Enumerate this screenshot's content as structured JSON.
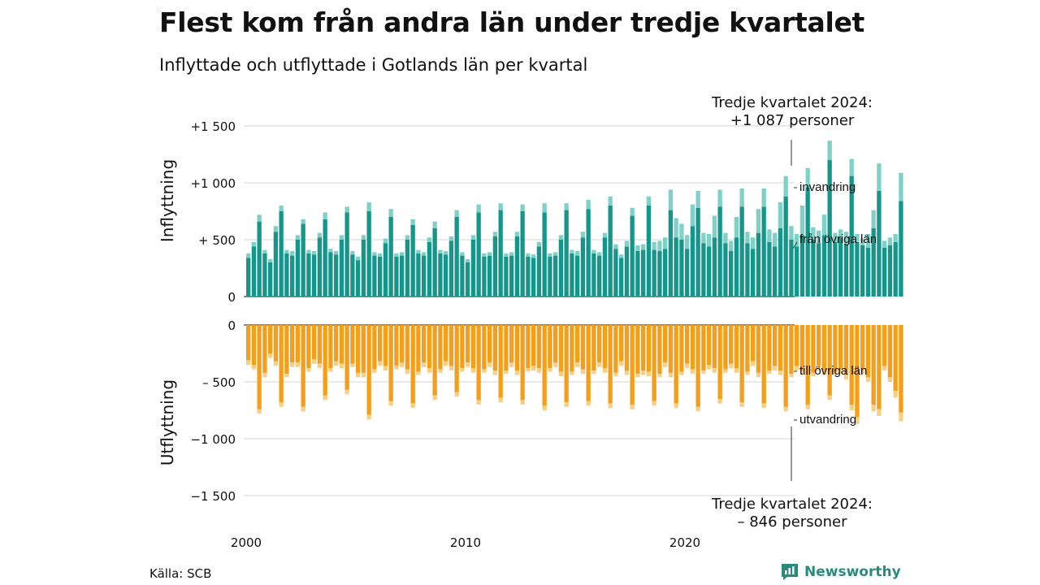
{
  "title": "Flest kom från andra län under tredje kvartalet",
  "subtitle": "Inflyttade och utflyttade i Gotlands län per kvartal",
  "source": "Källa: SCB",
  "brand": "Newsworthy",
  "colors": {
    "in_domestic": "#15968a",
    "in_immigration": "#7fd0c6",
    "out_domestic": "#f59e1a",
    "out_emigration": "#f8cf84",
    "grid": "#dddddd"
  },
  "chart_data": {
    "type": "bar",
    "xlabel": "",
    "x_ticks": [
      "2000",
      "2010",
      "2020"
    ],
    "x_start": 2000,
    "period": "quarter",
    "top_panel": {
      "ylabel": "Inflyttning",
      "ylim": [
        0,
        1600
      ],
      "y_ticks": [
        {
          "value": 1500,
          "label": "+1 500"
        },
        {
          "value": 1000,
          "label": "+1 000"
        },
        {
          "value": 500,
          "label": "+   500"
        },
        {
          "value": 0,
          "label": "0"
        }
      ],
      "series": [
        {
          "name": "från övriga län",
          "color": "#15968a",
          "values": [
            340,
            440,
            660,
            380,
            300,
            570,
            750,
            380,
            360,
            500,
            640,
            380,
            370,
            520,
            680,
            390,
            370,
            500,
            740,
            370,
            320,
            500,
            750,
            360,
            350,
            470,
            700,
            350,
            360,
            500,
            630,
            380,
            360,
            480,
            600,
            380,
            370,
            490,
            700,
            360,
            300,
            500,
            740,
            350,
            360,
            530,
            760,
            350,
            360,
            530,
            750,
            350,
            340,
            440,
            740,
            350,
            360,
            500,
            760,
            380,
            360,
            520,
            770,
            380,
            360,
            520,
            800,
            420,
            340,
            440,
            710,
            400,
            410,
            800,
            410,
            400,
            420,
            760,
            520,
            500,
            420,
            620,
            780,
            470,
            440,
            520,
            790,
            470,
            400,
            520,
            790,
            470,
            420,
            560,
            790,
            480,
            440,
            600,
            880,
            500,
            440,
            540,
            960,
            500,
            470,
            540,
            1200,
            480,
            520,
            460,
            1060,
            480,
            450,
            430,
            600,
            930,
            430,
            450,
            480,
            840
          ]
        },
        {
          "name": "invandring",
          "color": "#7fd0c6",
          "values": [
            40,
            40,
            60,
            30,
            30,
            50,
            50,
            30,
            40,
            40,
            40,
            30,
            30,
            40,
            60,
            30,
            30,
            40,
            50,
            30,
            30,
            40,
            80,
            30,
            30,
            40,
            70,
            30,
            30,
            40,
            50,
            30,
            30,
            40,
            60,
            30,
            30,
            40,
            60,
            30,
            30,
            40,
            70,
            30,
            30,
            40,
            60,
            30,
            30,
            40,
            60,
            30,
            30,
            40,
            80,
            30,
            30,
            40,
            60,
            30,
            40,
            50,
            80,
            30,
            30,
            40,
            80,
            40,
            30,
            50,
            70,
            50,
            50,
            80,
            70,
            90,
            100,
            180,
            170,
            140,
            120,
            190,
            150,
            90,
            110,
            190,
            150,
            90,
            90,
            180,
            160,
            100,
            100,
            210,
            160,
            110,
            120,
            230,
            180,
            120,
            110,
            260,
            170,
            110,
            110,
            180,
            170,
            80,
            70,
            110,
            150,
            70,
            60,
            120,
            160,
            240,
            60,
            70,
            70,
            247
          ]
        }
      ]
    },
    "bottom_panel": {
      "ylabel": "Utflyttning",
      "ylim": [
        -1600,
        0
      ],
      "y_ticks": [
        {
          "value": 0,
          "label": "0"
        },
        {
          "value": -500,
          "label": "–   500"
        },
        {
          "value": -1000,
          "label": "−1 000"
        },
        {
          "value": -1500,
          "label": "−1 500"
        }
      ],
      "series": [
        {
          "name": "till övriga län",
          "color": "#f59e1a",
          "values": [
            -310,
            -350,
            -740,
            -420,
            -250,
            -320,
            -680,
            -430,
            -330,
            -330,
            -720,
            -380,
            -300,
            -340,
            -620,
            -380,
            -320,
            -340,
            -570,
            -340,
            -420,
            -420,
            -790,
            -390,
            -320,
            -360,
            -670,
            -360,
            -330,
            -390,
            -690,
            -410,
            -330,
            -380,
            -620,
            -390,
            -320,
            -360,
            -590,
            -380,
            -330,
            -380,
            -660,
            -390,
            -330,
            -400,
            -640,
            -400,
            -330,
            -400,
            -660,
            -380,
            -360,
            -380,
            -710,
            -380,
            -330,
            -410,
            -680,
            -410,
            -330,
            -390,
            -670,
            -400,
            -330,
            -380,
            -690,
            -420,
            -320,
            -400,
            -700,
            -430,
            -400,
            -410,
            -670,
            -430,
            -330,
            -420,
            -690,
            -410,
            -340,
            -390,
            -720,
            -400,
            -350,
            -380,
            -650,
            -390,
            -340,
            -380,
            -680,
            -410,
            -320,
            -420,
            -690,
            -400,
            -360,
            -400,
            -720,
            -430,
            -360,
            -400,
            -700,
            -420,
            -360,
            -400,
            -620,
            -410,
            -390,
            -440,
            -700,
            -810,
            -390,
            -460,
            -700,
            -740,
            -360,
            -460,
            -580,
            -770
          ]
        },
        {
          "name": "utvandring",
          "color": "#f8cf84",
          "values": [
            -40,
            -40,
            -40,
            -40,
            -40,
            -40,
            -40,
            -30,
            -40,
            -40,
            -40,
            -30,
            -40,
            -40,
            -40,
            -30,
            -40,
            -40,
            -40,
            -30,
            -40,
            -40,
            -40,
            -30,
            -40,
            -40,
            -40,
            -30,
            -40,
            -40,
            -40,
            -30,
            -40,
            -40,
            -40,
            -30,
            -40,
            -40,
            -40,
            -30,
            -40,
            -40,
            -40,
            -30,
            -40,
            -40,
            -40,
            -30,
            -40,
            -40,
            -40,
            -30,
            -40,
            -40,
            -40,
            -30,
            -40,
            -40,
            -40,
            -30,
            -40,
            -40,
            -40,
            -30,
            -40,
            -40,
            -40,
            -30,
            -40,
            -40,
            -40,
            -30,
            -40,
            -40,
            -40,
            -30,
            -40,
            -40,
            -40,
            -30,
            -40,
            -40,
            -40,
            -30,
            -40,
            -40,
            -40,
            -30,
            -40,
            -40,
            -40,
            -30,
            -40,
            -40,
            -40,
            -30,
            -40,
            -40,
            -40,
            -30,
            -40,
            -40,
            -40,
            -30,
            -40,
            -40,
            -40,
            -30,
            -40,
            -40,
            -50,
            -60,
            -40,
            -40,
            -60,
            -60,
            -40,
            -40,
            -60,
            -76
          ]
        }
      ]
    },
    "annotations": {
      "top_line1": "Tredje kvartalet 2024:",
      "top_line2": "+1 087 personer",
      "bottom_line1": "Tredje kvartalet 2024:",
      "bottom_line2": "–  846 personer"
    }
  }
}
